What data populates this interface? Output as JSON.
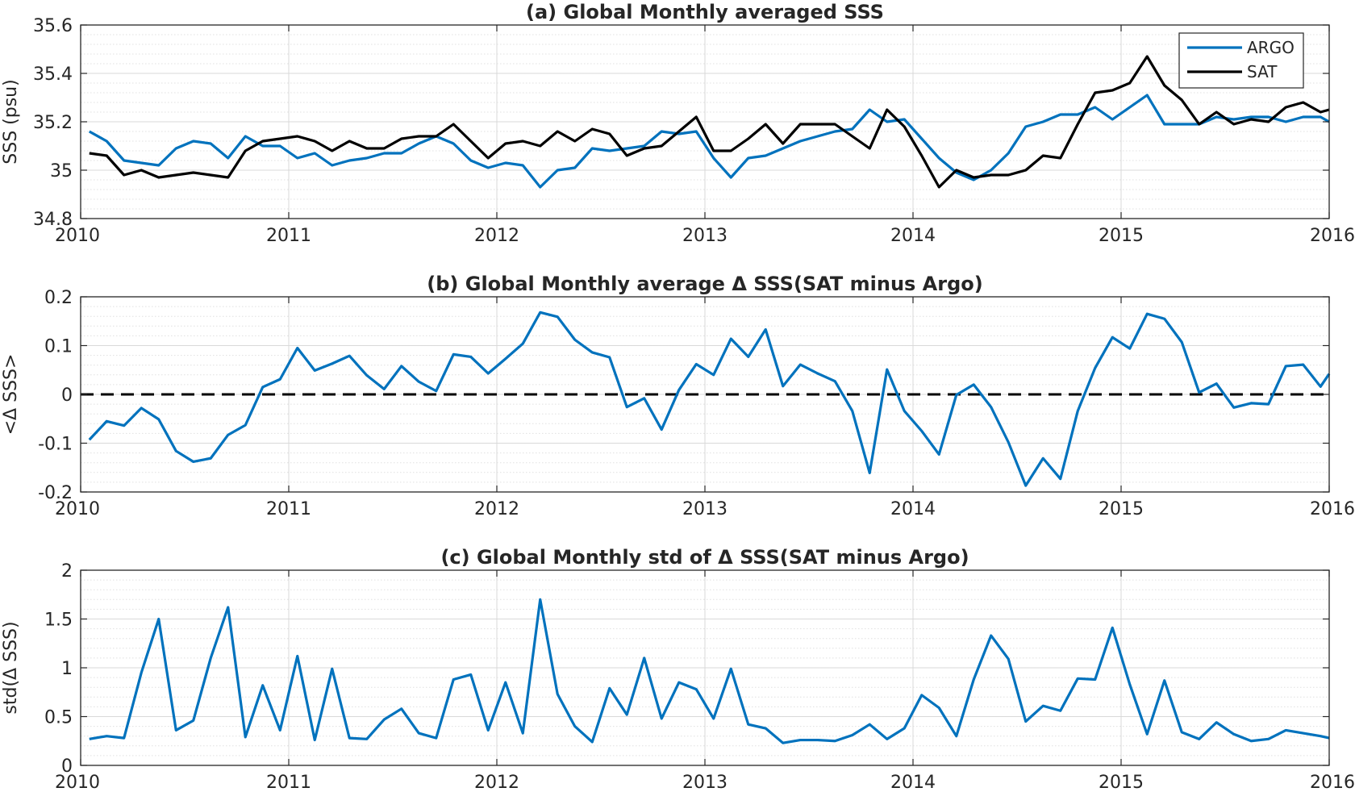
{
  "colors": {
    "argo": "#0072BD",
    "sat": "#000000",
    "grid": "#d9d9d9",
    "minorgrid": "#e0e0e0",
    "axis": "#262626"
  },
  "chart_data": [
    {
      "type": "line",
      "title": "(a) Global Monthly averaged SSS",
      "ylabel": "SSS (psu)",
      "xlabel": "",
      "xlim": [
        2010,
        2016
      ],
      "ylim": [
        34.8,
        35.6
      ],
      "xticks": [
        2010,
        2011,
        2012,
        2013,
        2014,
        2015,
        2016
      ],
      "xtick_labels": [
        "2010",
        "2011",
        "2012",
        "2013",
        "2014",
        "2015",
        "2016"
      ],
      "yticks": [
        34.8,
        35,
        35.2,
        35.4,
        35.6
      ],
      "ytick_labels": [
        "34.8",
        "35",
        "35.2",
        "35.4",
        "35.6"
      ],
      "grid": true,
      "legend": "top-right",
      "series": [
        {
          "name": "ARGO",
          "color": "#0072BD",
          "values": [
            35.16,
            35.12,
            35.04,
            35.03,
            35.02,
            35.09,
            35.12,
            35.11,
            35.05,
            35.14,
            35.1,
            35.1,
            35.05,
            35.07,
            35.02,
            35.04,
            35.05,
            35.07,
            35.07,
            35.11,
            35.14,
            35.11,
            35.04,
            35.01,
            35.03,
            35.02,
            34.93,
            35.0,
            35.01,
            35.09,
            35.08,
            35.09,
            35.1,
            35.16,
            35.15,
            35.16,
            35.05,
            34.97,
            35.05,
            35.06,
            35.09,
            35.12,
            35.14,
            35.16,
            35.17,
            35.25,
            35.2,
            35.21,
            35.13,
            35.05,
            34.99,
            34.96,
            35.0,
            35.07,
            35.18,
            35.2,
            35.23,
            35.23,
            35.26,
            35.21,
            35.26,
            35.31,
            35.19,
            35.19,
            35.19,
            35.22,
            35.21,
            35.22,
            35.22,
            35.2,
            35.22,
            35.22,
            35.2
          ]
        },
        {
          "name": "SAT",
          "color": "#000000",
          "values": [
            35.07,
            35.06,
            34.98,
            35.0,
            34.97,
            34.98,
            34.99,
            34.98,
            34.97,
            35.08,
            35.12,
            35.13,
            35.14,
            35.12,
            35.08,
            35.12,
            35.09,
            35.09,
            35.13,
            35.14,
            35.14,
            35.19,
            35.12,
            35.05,
            35.11,
            35.12,
            35.1,
            35.16,
            35.12,
            35.17,
            35.15,
            35.06,
            35.09,
            35.1,
            35.16,
            35.22,
            35.08,
            35.08,
            35.13,
            35.19,
            35.11,
            35.19,
            35.19,
            35.19,
            35.14,
            35.09,
            35.25,
            35.18,
            35.06,
            34.93,
            35.0,
            34.97,
            34.98,
            34.98,
            35.0,
            35.06,
            35.05,
            35.19,
            35.32,
            35.33,
            35.36,
            35.47,
            35.35,
            35.29,
            35.19,
            35.24,
            35.19,
            35.21,
            35.2,
            35.26,
            35.28,
            35.24,
            35.25
          ]
        }
      ]
    },
    {
      "type": "line",
      "title": "(b) Global Monthly average Δ SSS(SAT minus Argo)",
      "ylabel": "<Δ SSS>",
      "xlabel": "",
      "xlim": [
        2010,
        2016
      ],
      "ylim": [
        -0.2,
        0.2
      ],
      "xticks": [
        2010,
        2011,
        2012,
        2013,
        2014,
        2015,
        2016
      ],
      "xtick_labels": [
        "2010",
        "2011",
        "2012",
        "2013",
        "2014",
        "2015",
        "2016"
      ],
      "yticks": [
        -0.2,
        -0.1,
        0,
        0.1,
        0.2
      ],
      "ytick_labels": [
        "-0.2",
        "-0.1",
        "0",
        "0.1",
        "0.2"
      ],
      "grid": true,
      "zero_line": true,
      "series": [
        {
          "name": "",
          "color": "#0072BD",
          "values": [
            -0.093,
            -0.055,
            -0.064,
            -0.028,
            -0.051,
            -0.116,
            -0.138,
            -0.131,
            -0.083,
            -0.063,
            0.015,
            0.031,
            0.095,
            0.049,
            0.063,
            0.079,
            0.039,
            0.011,
            0.058,
            0.026,
            0.007,
            0.082,
            0.077,
            0.043,
            0.073,
            0.104,
            0.168,
            0.159,
            0.112,
            0.086,
            0.076,
            -0.026,
            -0.008,
            -0.072,
            0.009,
            0.062,
            0.04,
            0.114,
            0.077,
            0.133,
            0.017,
            0.061,
            0.043,
            0.027,
            -0.034,
            -0.161,
            0.051,
            -0.034,
            -0.075,
            -0.123,
            -0.001,
            0.02,
            -0.026,
            -0.098,
            -0.187,
            -0.131,
            -0.173,
            -0.034,
            0.054,
            0.117,
            0.094,
            0.165,
            0.155,
            0.107,
            0.004,
            0.022,
            -0.027,
            -0.018,
            -0.02,
            0.058,
            0.061,
            0.016,
            0.042
          ]
        }
      ]
    },
    {
      "type": "line",
      "title": "(c) Global Monthly std of Δ SSS(SAT minus Argo)",
      "ylabel": "std(Δ SSS)",
      "xlabel": "",
      "xlim": [
        2010,
        2016
      ],
      "ylim": [
        0,
        2
      ],
      "xticks": [
        2010,
        2011,
        2012,
        2013,
        2014,
        2015,
        2016
      ],
      "xtick_labels": [
        "2010",
        "2011",
        "2012",
        "2013",
        "2014",
        "2015",
        "2016"
      ],
      "yticks": [
        0,
        0.5,
        1,
        1.5,
        2
      ],
      "ytick_labels": [
        "0",
        "0.5",
        "1",
        "1.5",
        "2"
      ],
      "grid": true,
      "series": [
        {
          "name": "",
          "color": "#0072BD",
          "values": [
            0.27,
            0.3,
            0.28,
            0.95,
            1.5,
            0.36,
            0.46,
            1.1,
            1.62,
            0.29,
            0.82,
            0.36,
            1.12,
            0.26,
            0.99,
            0.28,
            0.27,
            0.47,
            0.58,
            0.33,
            0.28,
            0.88,
            0.93,
            0.36,
            0.85,
            0.33,
            1.7,
            0.73,
            0.4,
            0.24,
            0.79,
            0.52,
            1.1,
            0.48,
            0.85,
            0.78,
            0.48,
            0.99,
            0.42,
            0.38,
            0.23,
            0.26,
            0.26,
            0.25,
            0.31,
            0.42,
            0.27,
            0.38,
            0.72,
            0.59,
            0.3,
            0.88,
            1.33,
            1.09,
            0.45,
            0.61,
            0.56,
            0.89,
            0.88,
            1.41,
            0.83,
            0.32,
            0.87,
            0.34,
            0.27,
            0.44,
            0.32,
            0.25,
            0.27,
            0.36,
            0.33,
            0.3,
            0.28
          ]
        }
      ]
    }
  ]
}
